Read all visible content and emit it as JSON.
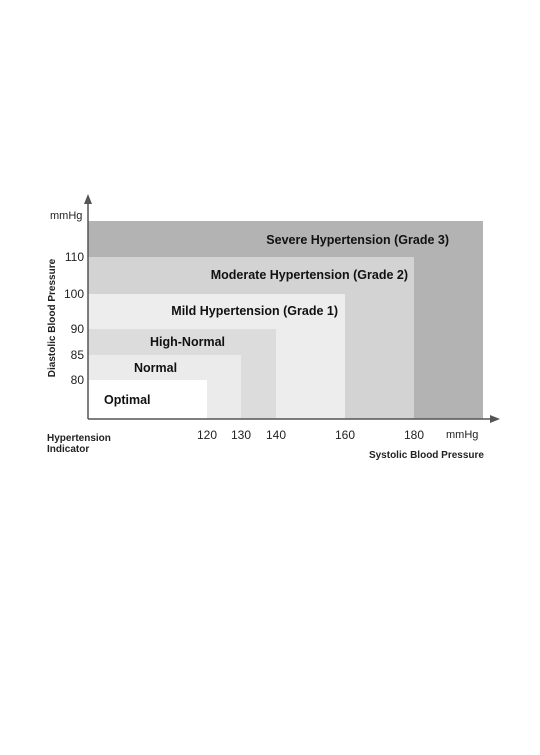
{
  "chart_data": {
    "type": "area",
    "title": "",
    "x_unit": "mmHg",
    "y_unit": "mmHg",
    "xlabel": "Systolic Blood Pressure",
    "ylabel": "Diastolic Blood Pressure",
    "corner_label": [
      "Hypertension",
      "Indicator"
    ],
    "x_ticks": [
      120,
      130,
      140,
      160,
      180
    ],
    "y_ticks": [
      80,
      85,
      90,
      100,
      110
    ],
    "grid": false,
    "categories": [
      {
        "name": "Severe Hypertension (Grade 3)",
        "color": "#b3b3b3"
      },
      {
        "name": "Moderate Hypertension (Grade 2)",
        "color": "#d3d3d3",
        "systolic_max": 180,
        "diastolic_max": 110
      },
      {
        "name": "Mild Hypertension (Grade 1)",
        "color": "#ededed",
        "systolic_max": 160,
        "diastolic_max": 100
      },
      {
        "name": "High-Normal",
        "color": "#dcdcdc",
        "systolic_max": 140,
        "diastolic_max": 90
      },
      {
        "name": "Normal",
        "color": "#ebebeb",
        "systolic_max": 130,
        "diastolic_max": 85
      },
      {
        "name": "Optimal",
        "color": "#ffffff",
        "systolic_max": 120,
        "diastolic_max": 80
      }
    ]
  }
}
